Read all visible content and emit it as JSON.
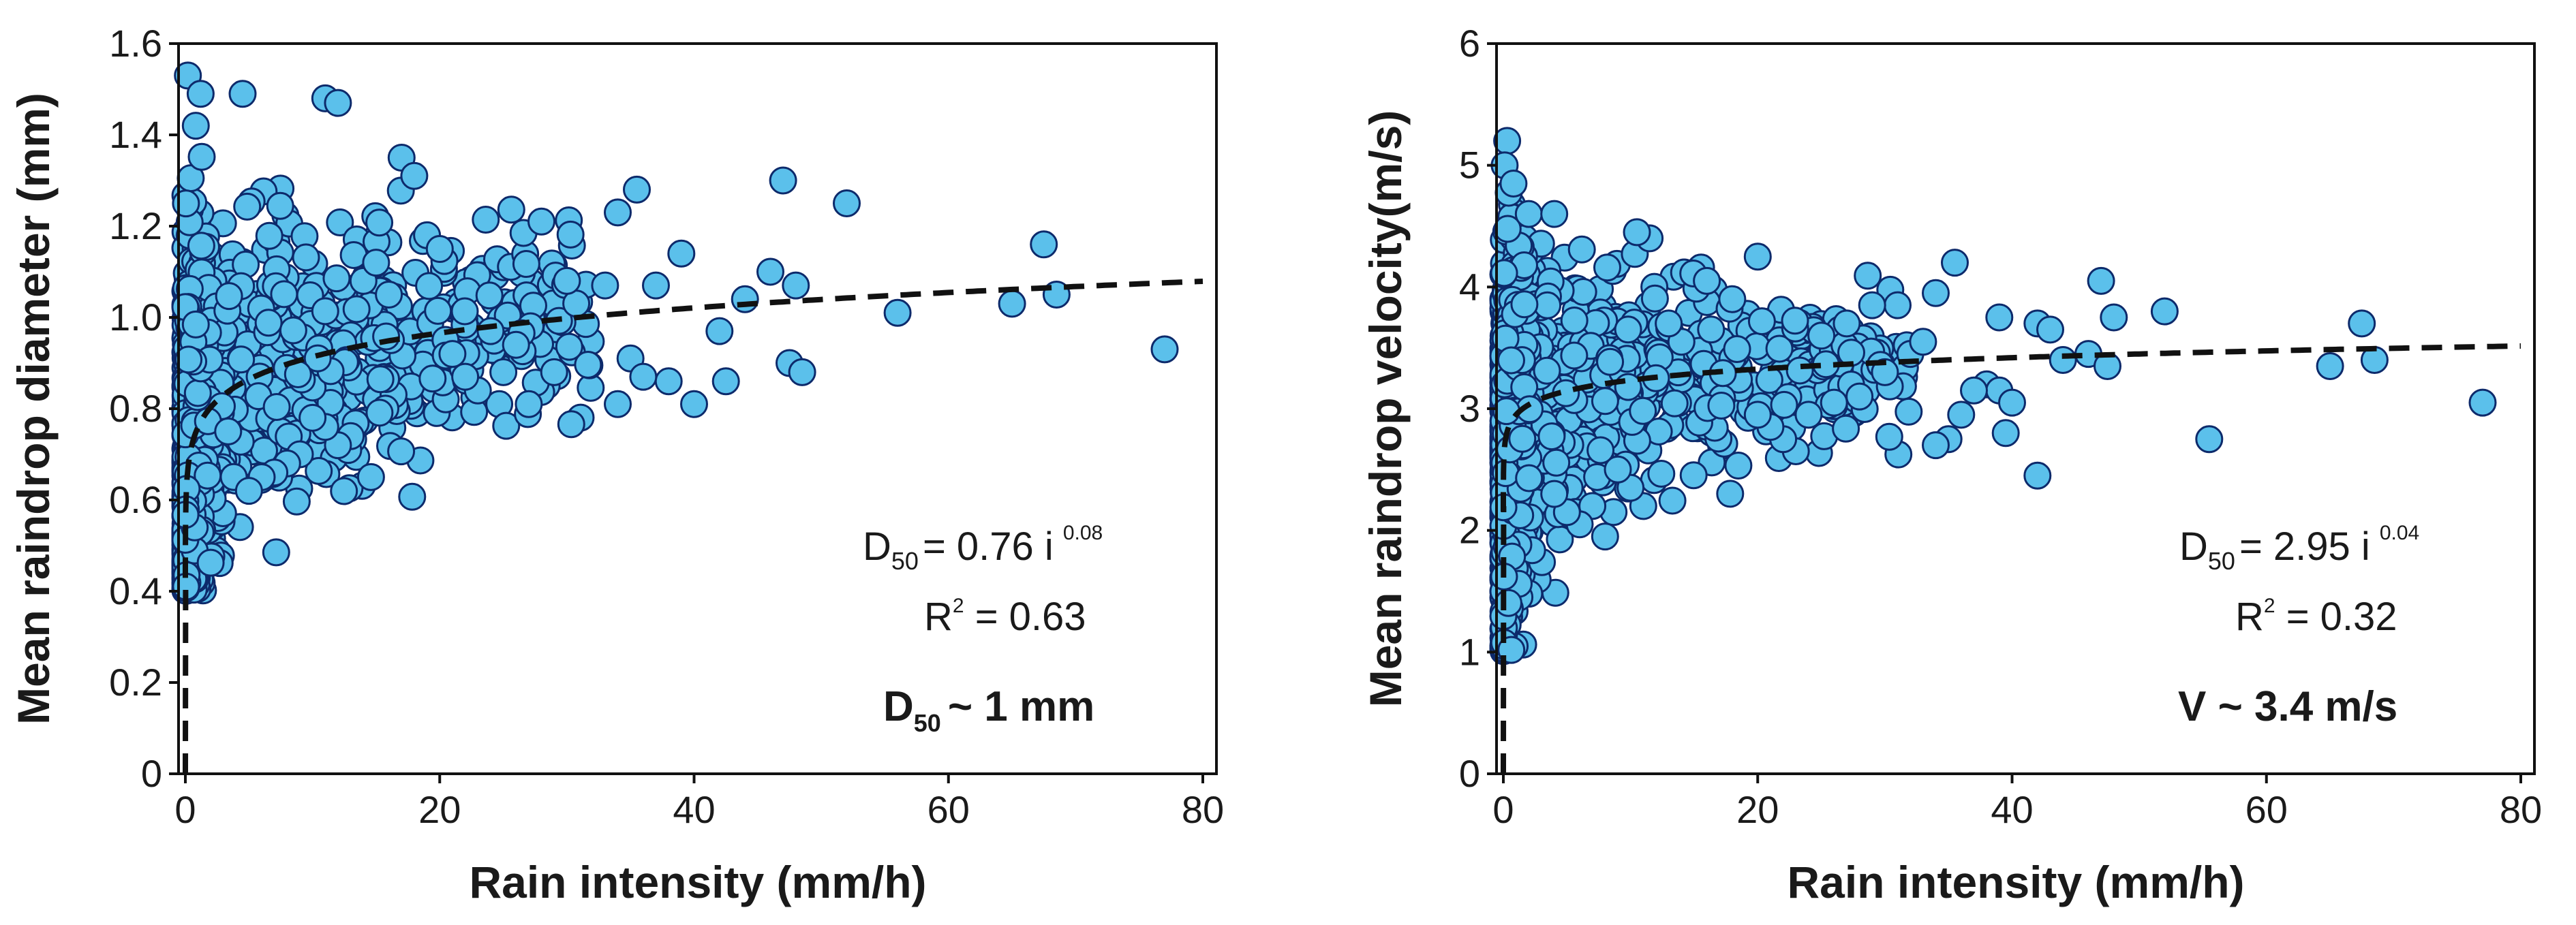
{
  "chart_data": [
    {
      "type": "scatter",
      "xlabel": "Rain intensity (mm/h)",
      "ylabel": "Mean raindrop diameter (mm)",
      "xlim": [
        0,
        80
      ],
      "ylim": [
        0,
        1.6
      ],
      "x_ticks": [
        "0",
        "20",
        "40",
        "60",
        "80"
      ],
      "y_ticks": [
        "0",
        "0.2",
        "0.4",
        "0.6",
        "0.8",
        "1.0",
        "1.2",
        "1.4",
        "1.6"
      ],
      "fit": {
        "a": 0.76,
        "b": 0.08,
        "style": "dashed"
      },
      "marker_color": "#5BC0EB",
      "marker_edge": "#0D2A6B",
      "points": [
        [
          0.2,
          1.53
        ],
        [
          1.2,
          1.49
        ],
        [
          4.5,
          1.49
        ],
        [
          11,
          1.48
        ],
        [
          12,
          1.47
        ],
        [
          17,
          1.35
        ],
        [
          18,
          1.31
        ],
        [
          35.5,
          1.28
        ],
        [
          47,
          1.3
        ],
        [
          52,
          1.25
        ],
        [
          28,
          1.21
        ],
        [
          34,
          1.23
        ],
        [
          30,
          1.08
        ],
        [
          33,
          1.07
        ],
        [
          37,
          1.07
        ],
        [
          39,
          1.14
        ],
        [
          44,
          1.04
        ],
        [
          46,
          1.1
        ],
        [
          48,
          1.07
        ],
        [
          42,
          0.97
        ],
        [
          38,
          0.86
        ],
        [
          40,
          0.81
        ],
        [
          42.5,
          0.86
        ],
        [
          47.5,
          0.9
        ],
        [
          48.5,
          0.88
        ],
        [
          35,
          0.91
        ],
        [
          36,
          0.87
        ],
        [
          34,
          0.81
        ],
        [
          24,
          0.97
        ],
        [
          26,
          0.94
        ],
        [
          25,
          0.88
        ],
        [
          23,
          0.84
        ],
        [
          22,
          0.87
        ],
        [
          21,
          0.92
        ],
        [
          27,
          0.81
        ],
        [
          29,
          0.88
        ],
        [
          56,
          1.01
        ],
        [
          65,
          1.03
        ],
        [
          67.5,
          1.16
        ],
        [
          68.5,
          1.05
        ],
        [
          77,
          0.93
        ],
        [
          14,
          1.08
        ],
        [
          15,
          1.12
        ],
        [
          16,
          1.05
        ],
        [
          19,
          1.18
        ],
        [
          20,
          1.15
        ],
        [
          13,
          0.74
        ],
        [
          12,
          0.72
        ],
        [
          11,
          0.76
        ],
        [
          10,
          0.78
        ],
        [
          9,
          0.7
        ],
        [
          8,
          0.68
        ],
        [
          7,
          0.66
        ],
        [
          6,
          0.65
        ],
        [
          5,
          0.62
        ]
      ],
      "annotations": {
        "equation_main": "D",
        "equation_sub": "50",
        "equation_rest": "= 0.76 i",
        "equation_exp": "0.08",
        "r2_main": "R",
        "r2_sup": "2",
        "r2_rest": " = 0.63",
        "note_main": "D",
        "note_sub": "50",
        "note_rest": "~ 1 mm"
      }
    },
    {
      "type": "scatter",
      "xlabel": "Rain intensity (mm/h)",
      "ylabel": "Mean raindrop velocity(m/s)",
      "xlim": [
        0,
        80
      ],
      "ylim": [
        0,
        6
      ],
      "x_ticks": [
        "0",
        "20",
        "40",
        "60",
        "80"
      ],
      "y_ticks": [
        "0",
        "1",
        "2",
        "3",
        "4",
        "5",
        "6"
      ],
      "fit": {
        "a": 2.95,
        "b": 0.04,
        "style": "dashed"
      },
      "marker_color": "#5BC0EB",
      "marker_edge": "#0D2A6B",
      "points": [
        [
          0.3,
          5.2
        ],
        [
          0.1,
          5.0
        ],
        [
          0.8,
          4.85
        ],
        [
          2.0,
          4.6
        ],
        [
          4.0,
          4.6
        ],
        [
          11.5,
          4.4
        ],
        [
          10.5,
          4.45
        ],
        [
          20,
          4.25
        ],
        [
          35.5,
          4.2
        ],
        [
          47,
          4.05
        ],
        [
          48,
          3.75
        ],
        [
          52,
          3.8
        ],
        [
          34,
          3.95
        ],
        [
          31,
          3.85
        ],
        [
          39,
          3.75
        ],
        [
          42,
          3.7
        ],
        [
          43,
          3.65
        ],
        [
          44,
          3.4
        ],
        [
          46,
          3.45
        ],
        [
          47.5,
          3.35
        ],
        [
          38,
          3.2
        ],
        [
          39,
          3.15
        ],
        [
          40,
          3.05
        ],
        [
          39.5,
          2.8
        ],
        [
          37,
          3.15
        ],
        [
          36,
          2.95
        ],
        [
          35,
          2.75
        ],
        [
          34,
          2.7
        ],
        [
          42,
          2.45
        ],
        [
          55.5,
          2.75
        ],
        [
          65,
          3.35
        ],
        [
          67.5,
          3.7
        ],
        [
          68.5,
          3.4
        ],
        [
          77,
          3.05
        ],
        [
          28,
          3.1
        ],
        [
          26,
          3.05
        ],
        [
          24,
          2.95
        ],
        [
          23,
          2.65
        ],
        [
          22,
          2.75
        ],
        [
          21,
          2.85
        ],
        [
          20,
          2.95
        ],
        [
          30,
          3.3
        ],
        [
          32,
          3.45
        ],
        [
          33,
          3.55
        ],
        [
          25,
          3.6
        ],
        [
          27,
          3.7
        ],
        [
          29,
          3.85
        ],
        [
          18,
          3.9
        ],
        [
          16,
          4.05
        ],
        [
          14,
          3.55
        ],
        [
          13,
          3.7
        ],
        [
          12,
          3.25
        ],
        [
          11,
          2.2
        ],
        [
          10,
          2.35
        ],
        [
          9,
          2.5
        ],
        [
          8,
          1.95
        ],
        [
          7,
          2.2
        ],
        [
          6,
          2.05
        ],
        [
          5,
          2.15
        ],
        [
          4,
          2.3
        ]
      ],
      "annotations": {
        "equation_main": "D",
        "equation_sub": "50",
        "equation_rest": "= 2.95 i",
        "equation_exp": "0.04",
        "r2_main": "R",
        "r2_sup": "2",
        "r2_rest": " = 0.32",
        "note_main": "V ~ 3.4 m/s"
      }
    }
  ]
}
